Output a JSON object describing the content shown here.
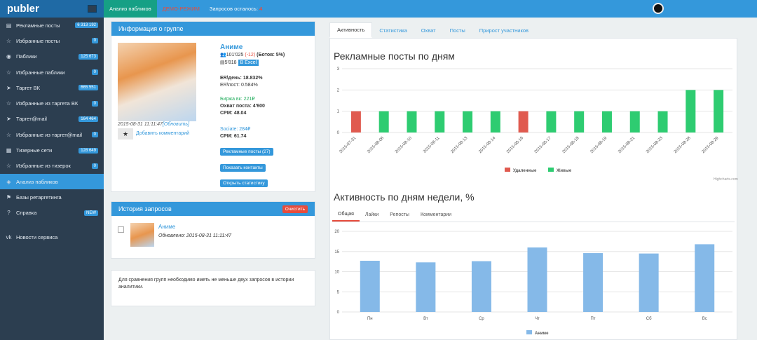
{
  "logo": "publer",
  "sidebar": {
    "items": [
      {
        "icon": "▤",
        "label": "Рекламные посты",
        "count": "6 313 192"
      },
      {
        "icon": "☆",
        "label": "Избранные посты",
        "count": "0"
      },
      {
        "icon": "◉",
        "label": "Паблики",
        "count": "125 673"
      },
      {
        "icon": "☆",
        "label": "Избранные паблики",
        "count": "0"
      },
      {
        "icon": "➤",
        "label": "Таргет ВК",
        "count": "665 551"
      },
      {
        "icon": "☆",
        "label": "Избранные из таргета ВК",
        "count": "0"
      },
      {
        "icon": "➤",
        "label": "Таргет@mail",
        "count": "164 464"
      },
      {
        "icon": "☆",
        "label": "Избранные из таргет@mail",
        "count": "0"
      },
      {
        "icon": "▦",
        "label": "Тизерные сети",
        "count": "128 649"
      },
      {
        "icon": "☆",
        "label": "Избранные из тизерок",
        "count": "0"
      },
      {
        "icon": "◈",
        "label": "Анализ пабликов",
        "count": ""
      },
      {
        "icon": "⚑",
        "label": "Базы ретаргетинга",
        "count": ""
      },
      {
        "icon": "?",
        "label": "Справка",
        "count": "NEW"
      },
      {
        "icon": "vk",
        "label": "Новости сервиса",
        "count": ""
      }
    ]
  },
  "topbar": {
    "tab": "Анализ пабликов",
    "demo": "ДЕМО-РЕЖИМ",
    "left_label": "Запросов осталось:",
    "left_value": "4"
  },
  "info": {
    "header": "Информация о группе",
    "name": "Аниме",
    "members": "101'025",
    "members_change": "(-12)",
    "bots": "(Ботов: 5%)",
    "posts": "5'818",
    "excel": "В Excel",
    "er_day": "ER\\день: 18.832%",
    "er_post": "ER\\пост: 0.584%",
    "birzha": "Биржа вк: 221₽",
    "reach": "Охват поста: 4'600",
    "cpm1": "CPM: 48.04",
    "sociate": "Sociate: 284₽",
    "cpm2": "CPM: 61.74",
    "date": "2015-08-31 11:11:47",
    "refresh": "[Обновить]",
    "comment": "Добавить комментарий",
    "btn_posts": "Рекламные посты (27)",
    "btn_contacts": "Показать контакты",
    "btn_stats": "Открыть статистику"
  },
  "history": {
    "header": "История запросов",
    "clear": "Очистить",
    "name": "Аниме",
    "updated": "Обновлено: 2015-08-31 11:11:47"
  },
  "compare_note": "Для сравнения групп необходимо иметь не меньше двух запросов в истории аналитики.",
  "tabs": [
    "Активность",
    "Статистика",
    "Охват",
    "Посты",
    "Прирост участников"
  ],
  "chart1_title": "Рекламные посты по дням",
  "chart2_title": "Активность по дням недели, %",
  "chart2_tabs": [
    "Общая",
    "Лайки",
    "Репосты",
    "Комментарии"
  ],
  "credit": "Highcharts.com",
  "colors": {
    "deleted": "#e05a4f",
    "live": "#2ecc71",
    "bar": "#85b9e8"
  },
  "chart_data": [
    {
      "type": "bar",
      "title": "Рекламные посты по дням",
      "categories": [
        "2015-07-31",
        "2015-08-06",
        "2015-08-10",
        "2015-08-11",
        "2015-08-13",
        "2015-08-14",
        "2015-08-16",
        "2015-08-17",
        "2015-08-18",
        "2015-08-19",
        "2015-08-21",
        "2015-08-23",
        "2015-08-28",
        "2015-08-29"
      ],
      "series": [
        {
          "name": "Удаленные",
          "values": [
            1,
            0,
            0,
            0,
            0,
            0,
            1,
            0,
            0,
            0,
            0,
            0,
            0,
            0
          ]
        },
        {
          "name": "Живые",
          "values": [
            0,
            1,
            1,
            1,
            1,
            1,
            0,
            1,
            1,
            1,
            1,
            1,
            2,
            2
          ]
        }
      ],
      "ylim": [
        0,
        3
      ],
      "yticks": [
        0,
        1,
        2,
        3
      ]
    },
    {
      "type": "bar",
      "title": "Активность по дням недели, %",
      "categories": [
        "Пн",
        "Вт",
        "Ср",
        "Чт",
        "Пт",
        "Сб",
        "Вс"
      ],
      "series": [
        {
          "name": "Аниме",
          "values": [
            12.7,
            12.3,
            12.6,
            16.0,
            14.6,
            14.5,
            16.8
          ]
        }
      ],
      "ylim": [
        0,
        20
      ],
      "yticks": [
        0,
        5,
        10,
        15,
        20
      ]
    }
  ]
}
